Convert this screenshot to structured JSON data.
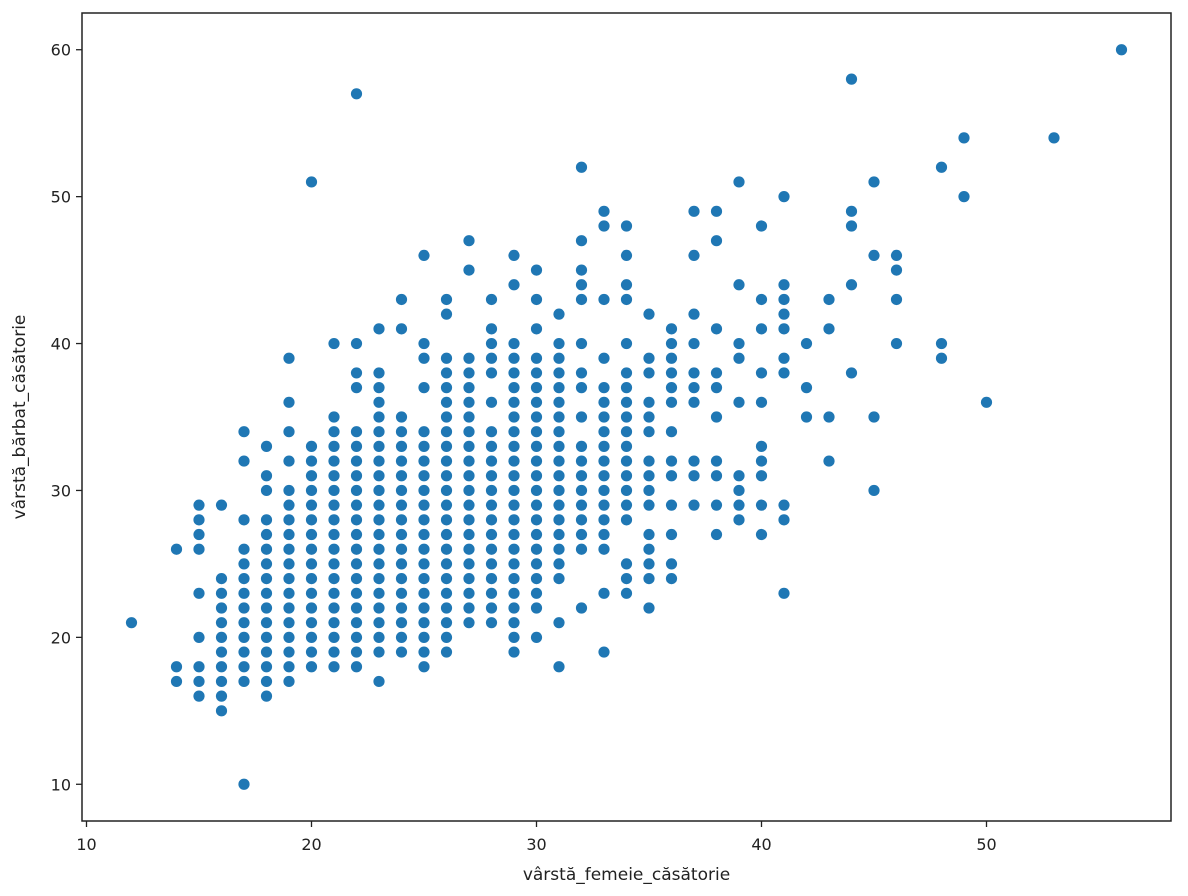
{
  "chart_data": {
    "type": "scatter",
    "title": "",
    "xlabel": "vârstă_femeie_căsătorie",
    "ylabel": "vârstă_bărbat_căsătorie",
    "xlim": [
      9.8,
      58.2
    ],
    "ylim": [
      7.5,
      62.5
    ],
    "xticks": [
      10,
      20,
      30,
      40,
      50
    ],
    "yticks": [
      10,
      20,
      30,
      40,
      50,
      60
    ],
    "grid": false,
    "legend": "none",
    "marker_color": "#1f77b4",
    "points": [
      [
        12,
        21
      ],
      [
        14,
        17
      ],
      [
        14,
        18
      ],
      [
        14,
        26
      ],
      [
        15,
        16
      ],
      [
        15,
        17
      ],
      [
        15,
        18
      ],
      [
        15,
        20
      ],
      [
        15,
        23
      ],
      [
        15,
        26
      ],
      [
        15,
        27
      ],
      [
        15,
        28
      ],
      [
        15,
        29
      ],
      [
        16,
        15
      ],
      [
        16,
        16
      ],
      [
        16,
        17
      ],
      [
        16,
        18
      ],
      [
        16,
        19
      ],
      [
        16,
        20
      ],
      [
        16,
        21
      ],
      [
        16,
        22
      ],
      [
        16,
        23
      ],
      [
        16,
        24
      ],
      [
        16,
        29
      ],
      [
        17,
        10
      ],
      [
        17,
        17
      ],
      [
        17,
        18
      ],
      [
        17,
        19
      ],
      [
        17,
        20
      ],
      [
        17,
        21
      ],
      [
        17,
        22
      ],
      [
        17,
        23
      ],
      [
        17,
        24
      ],
      [
        17,
        25
      ],
      [
        17,
        26
      ],
      [
        17,
        28
      ],
      [
        17,
        32
      ],
      [
        17,
        34
      ],
      [
        18,
        16
      ],
      [
        18,
        17
      ],
      [
        18,
        18
      ],
      [
        18,
        19
      ],
      [
        18,
        20
      ],
      [
        18,
        21
      ],
      [
        18,
        22
      ],
      [
        18,
        23
      ],
      [
        18,
        24
      ],
      [
        18,
        25
      ],
      [
        18,
        26
      ],
      [
        18,
        27
      ],
      [
        18,
        28
      ],
      [
        18,
        30
      ],
      [
        18,
        31
      ],
      [
        18,
        33
      ],
      [
        19,
        17
      ],
      [
        19,
        18
      ],
      [
        19,
        19
      ],
      [
        19,
        20
      ],
      [
        19,
        21
      ],
      [
        19,
        22
      ],
      [
        19,
        23
      ],
      [
        19,
        24
      ],
      [
        19,
        25
      ],
      [
        19,
        26
      ],
      [
        19,
        27
      ],
      [
        19,
        28
      ],
      [
        19,
        29
      ],
      [
        19,
        30
      ],
      [
        19,
        32
      ],
      [
        19,
        34
      ],
      [
        19,
        36
      ],
      [
        19,
        39
      ],
      [
        20,
        18
      ],
      [
        20,
        19
      ],
      [
        20,
        20
      ],
      [
        20,
        21
      ],
      [
        20,
        22
      ],
      [
        20,
        23
      ],
      [
        20,
        24
      ],
      [
        20,
        25
      ],
      [
        20,
        26
      ],
      [
        20,
        27
      ],
      [
        20,
        28
      ],
      [
        20,
        29
      ],
      [
        20,
        30
      ],
      [
        20,
        31
      ],
      [
        20,
        32
      ],
      [
        20,
        33
      ],
      [
        20,
        51
      ],
      [
        21,
        18
      ],
      [
        21,
        19
      ],
      [
        21,
        20
      ],
      [
        21,
        21
      ],
      [
        21,
        22
      ],
      [
        21,
        23
      ],
      [
        21,
        24
      ],
      [
        21,
        25
      ],
      [
        21,
        26
      ],
      [
        21,
        27
      ],
      [
        21,
        28
      ],
      [
        21,
        29
      ],
      [
        21,
        30
      ],
      [
        21,
        31
      ],
      [
        21,
        32
      ],
      [
        21,
        33
      ],
      [
        21,
        34
      ],
      [
        21,
        35
      ],
      [
        21,
        40
      ],
      [
        22,
        18
      ],
      [
        22,
        19
      ],
      [
        22,
        20
      ],
      [
        22,
        21
      ],
      [
        22,
        22
      ],
      [
        22,
        23
      ],
      [
        22,
        24
      ],
      [
        22,
        25
      ],
      [
        22,
        26
      ],
      [
        22,
        27
      ],
      [
        22,
        28
      ],
      [
        22,
        29
      ],
      [
        22,
        30
      ],
      [
        22,
        31
      ],
      [
        22,
        32
      ],
      [
        22,
        33
      ],
      [
        22,
        34
      ],
      [
        22,
        37
      ],
      [
        22,
        38
      ],
      [
        22,
        40
      ],
      [
        22,
        57
      ],
      [
        23,
        17
      ],
      [
        23,
        19
      ],
      [
        23,
        20
      ],
      [
        23,
        21
      ],
      [
        23,
        22
      ],
      [
        23,
        23
      ],
      [
        23,
        24
      ],
      [
        23,
        25
      ],
      [
        23,
        26
      ],
      [
        23,
        27
      ],
      [
        23,
        28
      ],
      [
        23,
        29
      ],
      [
        23,
        30
      ],
      [
        23,
        31
      ],
      [
        23,
        32
      ],
      [
        23,
        33
      ],
      [
        23,
        34
      ],
      [
        23,
        35
      ],
      [
        23,
        36
      ],
      [
        23,
        37
      ],
      [
        23,
        38
      ],
      [
        23,
        41
      ],
      [
        24,
        19
      ],
      [
        24,
        20
      ],
      [
        24,
        21
      ],
      [
        24,
        22
      ],
      [
        24,
        23
      ],
      [
        24,
        24
      ],
      [
        24,
        25
      ],
      [
        24,
        26
      ],
      [
        24,
        27
      ],
      [
        24,
        28
      ],
      [
        24,
        29
      ],
      [
        24,
        30
      ],
      [
        24,
        31
      ],
      [
        24,
        32
      ],
      [
        24,
        33
      ],
      [
        24,
        34
      ],
      [
        24,
        35
      ],
      [
        24,
        41
      ],
      [
        24,
        43
      ],
      [
        25,
        18
      ],
      [
        25,
        19
      ],
      [
        25,
        20
      ],
      [
        25,
        21
      ],
      [
        25,
        22
      ],
      [
        25,
        23
      ],
      [
        25,
        24
      ],
      [
        25,
        25
      ],
      [
        25,
        26
      ],
      [
        25,
        27
      ],
      [
        25,
        28
      ],
      [
        25,
        29
      ],
      [
        25,
        30
      ],
      [
        25,
        31
      ],
      [
        25,
        32
      ],
      [
        25,
        33
      ],
      [
        25,
        34
      ],
      [
        25,
        37
      ],
      [
        25,
        39
      ],
      [
        25,
        40
      ],
      [
        25,
        46
      ],
      [
        26,
        19
      ],
      [
        26,
        20
      ],
      [
        26,
        21
      ],
      [
        26,
        22
      ],
      [
        26,
        23
      ],
      [
        26,
        24
      ],
      [
        26,
        25
      ],
      [
        26,
        26
      ],
      [
        26,
        27
      ],
      [
        26,
        28
      ],
      [
        26,
        29
      ],
      [
        26,
        30
      ],
      [
        26,
        31
      ],
      [
        26,
        32
      ],
      [
        26,
        33
      ],
      [
        26,
        34
      ],
      [
        26,
        35
      ],
      [
        26,
        36
      ],
      [
        26,
        37
      ],
      [
        26,
        38
      ],
      [
        26,
        39
      ],
      [
        26,
        42
      ],
      [
        26,
        43
      ],
      [
        27,
        21
      ],
      [
        27,
        22
      ],
      [
        27,
        23
      ],
      [
        27,
        24
      ],
      [
        27,
        25
      ],
      [
        27,
        26
      ],
      [
        27,
        27
      ],
      [
        27,
        28
      ],
      [
        27,
        29
      ],
      [
        27,
        30
      ],
      [
        27,
        31
      ],
      [
        27,
        32
      ],
      [
        27,
        33
      ],
      [
        27,
        34
      ],
      [
        27,
        35
      ],
      [
        27,
        36
      ],
      [
        27,
        37
      ],
      [
        27,
        38
      ],
      [
        27,
        39
      ],
      [
        27,
        45
      ],
      [
        27,
        47
      ],
      [
        28,
        21
      ],
      [
        28,
        22
      ],
      [
        28,
        23
      ],
      [
        28,
        24
      ],
      [
        28,
        25
      ],
      [
        28,
        26
      ],
      [
        28,
        27
      ],
      [
        28,
        28
      ],
      [
        28,
        29
      ],
      [
        28,
        30
      ],
      [
        28,
        31
      ],
      [
        28,
        32
      ],
      [
        28,
        33
      ],
      [
        28,
        34
      ],
      [
        28,
        36
      ],
      [
        28,
        38
      ],
      [
        28,
        39
      ],
      [
        28,
        40
      ],
      [
        28,
        41
      ],
      [
        28,
        43
      ],
      [
        29,
        19
      ],
      [
        29,
        20
      ],
      [
        29,
        21
      ],
      [
        29,
        22
      ],
      [
        29,
        23
      ],
      [
        29,
        24
      ],
      [
        29,
        25
      ],
      [
        29,
        26
      ],
      [
        29,
        27
      ],
      [
        29,
        28
      ],
      [
        29,
        29
      ],
      [
        29,
        30
      ],
      [
        29,
        31
      ],
      [
        29,
        32
      ],
      [
        29,
        33
      ],
      [
        29,
        34
      ],
      [
        29,
        35
      ],
      [
        29,
        36
      ],
      [
        29,
        37
      ],
      [
        29,
        38
      ],
      [
        29,
        39
      ],
      [
        29,
        40
      ],
      [
        29,
        44
      ],
      [
        29,
        46
      ],
      [
        30,
        20
      ],
      [
        30,
        22
      ],
      [
        30,
        23
      ],
      [
        30,
        24
      ],
      [
        30,
        25
      ],
      [
        30,
        26
      ],
      [
        30,
        27
      ],
      [
        30,
        28
      ],
      [
        30,
        29
      ],
      [
        30,
        30
      ],
      [
        30,
        31
      ],
      [
        30,
        32
      ],
      [
        30,
        33
      ],
      [
        30,
        34
      ],
      [
        30,
        35
      ],
      [
        30,
        36
      ],
      [
        30,
        37
      ],
      [
        30,
        38
      ],
      [
        30,
        39
      ],
      [
        30,
        41
      ],
      [
        30,
        43
      ],
      [
        30,
        45
      ],
      [
        31,
        18
      ],
      [
        31,
        21
      ],
      [
        31,
        24
      ],
      [
        31,
        25
      ],
      [
        31,
        26
      ],
      [
        31,
        27
      ],
      [
        31,
        28
      ],
      [
        31,
        29
      ],
      [
        31,
        30
      ],
      [
        31,
        31
      ],
      [
        31,
        32
      ],
      [
        31,
        33
      ],
      [
        31,
        34
      ],
      [
        31,
        35
      ],
      [
        31,
        36
      ],
      [
        31,
        37
      ],
      [
        31,
        38
      ],
      [
        31,
        39
      ],
      [
        31,
        40
      ],
      [
        31,
        42
      ],
      [
        32,
        22
      ],
      [
        32,
        26
      ],
      [
        32,
        27
      ],
      [
        32,
        28
      ],
      [
        32,
        29
      ],
      [
        32,
        30
      ],
      [
        32,
        31
      ],
      [
        32,
        32
      ],
      [
        32,
        33
      ],
      [
        32,
        35
      ],
      [
        32,
        37
      ],
      [
        32,
        38
      ],
      [
        32,
        40
      ],
      [
        32,
        43
      ],
      [
        32,
        44
      ],
      [
        32,
        45
      ],
      [
        32,
        47
      ],
      [
        32,
        52
      ],
      [
        33,
        19
      ],
      [
        33,
        23
      ],
      [
        33,
        26
      ],
      [
        33,
        27
      ],
      [
        33,
        28
      ],
      [
        33,
        29
      ],
      [
        33,
        30
      ],
      [
        33,
        31
      ],
      [
        33,
        32
      ],
      [
        33,
        33
      ],
      [
        33,
        34
      ],
      [
        33,
        35
      ],
      [
        33,
        36
      ],
      [
        33,
        37
      ],
      [
        33,
        39
      ],
      [
        33,
        43
      ],
      [
        33,
        48
      ],
      [
        33,
        49
      ],
      [
        34,
        23
      ],
      [
        34,
        24
      ],
      [
        34,
        25
      ],
      [
        34,
        28
      ],
      [
        34,
        29
      ],
      [
        34,
        30
      ],
      [
        34,
        31
      ],
      [
        34,
        32
      ],
      [
        34,
        33
      ],
      [
        34,
        34
      ],
      [
        34,
        35
      ],
      [
        34,
        36
      ],
      [
        34,
        37
      ],
      [
        34,
        38
      ],
      [
        34,
        40
      ],
      [
        34,
        43
      ],
      [
        34,
        44
      ],
      [
        34,
        46
      ],
      [
        34,
        48
      ],
      [
        35,
        22
      ],
      [
        35,
        24
      ],
      [
        35,
        25
      ],
      [
        35,
        26
      ],
      [
        35,
        27
      ],
      [
        35,
        29
      ],
      [
        35,
        30
      ],
      [
        35,
        31
      ],
      [
        35,
        32
      ],
      [
        35,
        34
      ],
      [
        35,
        35
      ],
      [
        35,
        36
      ],
      [
        35,
        38
      ],
      [
        35,
        39
      ],
      [
        35,
        42
      ],
      [
        36,
        24
      ],
      [
        36,
        25
      ],
      [
        36,
        27
      ],
      [
        36,
        29
      ],
      [
        36,
        31
      ],
      [
        36,
        32
      ],
      [
        36,
        34
      ],
      [
        36,
        36
      ],
      [
        36,
        37
      ],
      [
        36,
        38
      ],
      [
        36,
        39
      ],
      [
        36,
        40
      ],
      [
        36,
        41
      ],
      [
        37,
        29
      ],
      [
        37,
        31
      ],
      [
        37,
        32
      ],
      [
        37,
        36
      ],
      [
        37,
        37
      ],
      [
        37,
        38
      ],
      [
        37,
        40
      ],
      [
        37,
        42
      ],
      [
        37,
        46
      ],
      [
        37,
        49
      ],
      [
        38,
        27
      ],
      [
        38,
        29
      ],
      [
        38,
        31
      ],
      [
        38,
        32
      ],
      [
        38,
        35
      ],
      [
        38,
        37
      ],
      [
        38,
        38
      ],
      [
        38,
        41
      ],
      [
        38,
        47
      ],
      [
        38,
        49
      ],
      [
        39,
        28
      ],
      [
        39,
        29
      ],
      [
        39,
        30
      ],
      [
        39,
        31
      ],
      [
        39,
        36
      ],
      [
        39,
        39
      ],
      [
        39,
        40
      ],
      [
        39,
        44
      ],
      [
        39,
        51
      ],
      [
        40,
        27
      ],
      [
        40,
        29
      ],
      [
        40,
        31
      ],
      [
        40,
        32
      ],
      [
        40,
        33
      ],
      [
        40,
        36
      ],
      [
        40,
        38
      ],
      [
        40,
        41
      ],
      [
        40,
        43
      ],
      [
        40,
        48
      ],
      [
        41,
        23
      ],
      [
        41,
        28
      ],
      [
        41,
        29
      ],
      [
        41,
        38
      ],
      [
        41,
        39
      ],
      [
        41,
        41
      ],
      [
        41,
        42
      ],
      [
        41,
        43
      ],
      [
        41,
        44
      ],
      [
        41,
        50
      ],
      [
        42,
        35
      ],
      [
        42,
        37
      ],
      [
        42,
        40
      ],
      [
        43,
        32
      ],
      [
        43,
        35
      ],
      [
        43,
        41
      ],
      [
        43,
        43
      ],
      [
        44,
        38
      ],
      [
        44,
        44
      ],
      [
        44,
        48
      ],
      [
        44,
        49
      ],
      [
        44,
        58
      ],
      [
        45,
        30
      ],
      [
        45,
        35
      ],
      [
        45,
        46
      ],
      [
        45,
        51
      ],
      [
        46,
        40
      ],
      [
        46,
        43
      ],
      [
        46,
        45
      ],
      [
        46,
        46
      ],
      [
        48,
        39
      ],
      [
        48,
        40
      ],
      [
        48,
        52
      ],
      [
        49,
        50
      ],
      [
        49,
        54
      ],
      [
        50,
        36
      ],
      [
        53,
        54
      ],
      [
        56,
        60
      ]
    ]
  }
}
